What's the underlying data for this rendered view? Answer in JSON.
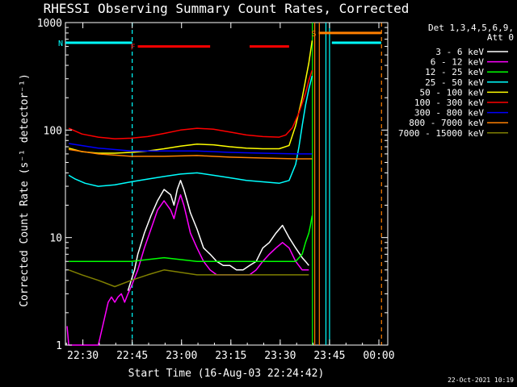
{
  "chart_data": {
    "type": "line",
    "title": "RHESSI Observing Summary Count Rates, Corrected",
    "xlabel": "Start Time (16-Aug-03 22:24:42)",
    "ylabel": "Corrected Count Rate (s⁻¹ detector⁻¹)",
    "x_unit": "minutes after 22:24:42",
    "xlim": [
      0,
      98
    ],
    "ylim": [
      1,
      1000
    ],
    "yscale": "log",
    "x_ticks": [
      {
        "label": "22:30",
        "value": 5.3
      },
      {
        "label": "22:45",
        "value": 20.3
      },
      {
        "label": "23:00",
        "value": 35.3
      },
      {
        "label": "23:15",
        "value": 50.3
      },
      {
        "label": "23:30",
        "value": 65.3
      },
      {
        "label": "23:45",
        "value": 80.3
      },
      {
        "label": "00:00",
        "value": 95.3
      }
    ],
    "y_ticks": [
      {
        "label": "1",
        "value": 1
      },
      {
        "label": "10",
        "value": 10
      },
      {
        "label": "100",
        "value": 100
      },
      {
        "label": "1000",
        "value": 1000
      }
    ],
    "legend_header": [
      "Det 1,3,4,5,6,9,",
      "Att 0"
    ],
    "legend_position": "right",
    "series": [
      {
        "name": "3 - 6 keV",
        "color": "#ffffff",
        "x": [
          19,
          20,
          21,
          22,
          24,
          26,
          28,
          30,
          32,
          33,
          34,
          35,
          36,
          37,
          38,
          40,
          42,
          44,
          46,
          48,
          50,
          52,
          54,
          56,
          58,
          60,
          62,
          64,
          66,
          68,
          70,
          72,
          73,
          74
        ],
        "y": [
          3.2,
          4,
          5,
          7,
          11,
          16,
          22,
          28,
          25,
          20,
          28,
          34,
          28,
          22,
          17,
          12,
          8,
          7,
          6,
          5.5,
          5.5,
          5,
          5,
          5.5,
          6,
          8,
          9,
          11,
          13,
          10,
          8,
          6.5,
          6,
          5.5
        ]
      },
      {
        "name": "6 - 12 keV",
        "color": "#ff00ff",
        "x": [
          0.5,
          1,
          5,
          10,
          13,
          14,
          15,
          16,
          17,
          18,
          19,
          20,
          22,
          24,
          26,
          28,
          30,
          32,
          33,
          34,
          35,
          36,
          37,
          38,
          40,
          42,
          44,
          46,
          48,
          50,
          52,
          54,
          56,
          58,
          60,
          62,
          64,
          66,
          68,
          70,
          72,
          74
        ],
        "y": [
          1.5,
          1,
          1,
          1,
          2.5,
          2.8,
          2.5,
          2.8,
          3,
          2.5,
          3,
          3.5,
          5,
          8,
          12,
          18,
          22,
          18,
          15,
          20,
          25,
          20,
          15,
          11,
          8,
          6,
          5,
          4.5,
          4.5,
          4.5,
          4.5,
          4.5,
          4.5,
          5,
          6,
          7,
          8,
          9,
          8,
          6,
          5,
          5
        ]
      },
      {
        "name": "12 - 25 keV",
        "color": "#00ff00",
        "x": [
          1,
          10,
          20,
          30,
          40,
          50,
          60,
          70,
          72,
          73,
          74,
          74.5,
          75
        ],
        "y": [
          6,
          6,
          6,
          6.5,
          6,
          6,
          6,
          6,
          7,
          9,
          11,
          13,
          16
        ]
      },
      {
        "name": "25 - 50 keV",
        "color": "#00ffff",
        "x": [
          1,
          3,
          6,
          10,
          15,
          20,
          25,
          30,
          35,
          40,
          45,
          50,
          55,
          60,
          65,
          68,
          70,
          71,
          72,
          73,
          74,
          75
        ],
        "y": [
          38,
          35,
          32,
          30,
          31,
          33,
          35,
          37,
          39,
          40,
          38,
          36,
          34,
          33,
          32,
          34,
          48,
          70,
          110,
          170,
          240,
          320
        ]
      },
      {
        "name": "50 - 100 keV",
        "color": "#ffff00",
        "x": [
          1,
          5,
          10,
          15,
          20,
          25,
          30,
          35,
          40,
          45,
          50,
          55,
          60,
          65,
          68,
          70,
          72,
          74,
          75
        ],
        "y": [
          68,
          63,
          61,
          61,
          62,
          64,
          67,
          71,
          74,
          73,
          70,
          68,
          67,
          67,
          72,
          110,
          200,
          420,
          680
        ]
      },
      {
        "name": "100 - 300 keV",
        "color": "#ff0000",
        "x": [
          1,
          5,
          10,
          15,
          20,
          25,
          30,
          35,
          40,
          45,
          50,
          55,
          60,
          65,
          67,
          69,
          71,
          73,
          74,
          75
        ],
        "y": [
          104,
          92,
          86,
          83,
          84,
          87,
          93,
          100,
          104,
          102,
          96,
          90,
          87,
          86,
          90,
          105,
          145,
          220,
          290,
          360
        ]
      },
      {
        "name": "300 - 800 keV",
        "color": "#0000ff",
        "x": [
          1,
          10,
          20,
          30,
          40,
          50,
          60,
          70,
          75
        ],
        "y": [
          75,
          68,
          64,
          64,
          64,
          62,
          61,
          60,
          60
        ]
      },
      {
        "name": "800 - 7000 keV",
        "color": "#ff8000",
        "x": [
          1,
          10,
          20,
          30,
          40,
          50,
          60,
          70,
          75
        ],
        "y": [
          66,
          60,
          57,
          57,
          58,
          56,
          55,
          54,
          54
        ]
      },
      {
        "name": "7000 - 15000 keV",
        "color": "#808000",
        "x": [
          1,
          5,
          10,
          15,
          20,
          25,
          30,
          40,
          50,
          60,
          70,
          74
        ],
        "y": [
          5,
          4.5,
          4,
          3.5,
          4,
          4.5,
          5,
          4.5,
          4.5,
          4.5,
          4.5,
          4.5
        ]
      }
    ],
    "flags": [
      {
        "label": "F",
        "color": "#ff0000",
        "value": 600,
        "spans": [
          [
            22,
            44
          ],
          [
            56,
            68
          ]
        ]
      },
      {
        "label": "N",
        "color": "#00ffff",
        "value": 650,
        "spans": [
          [
            0,
            20.3
          ],
          [
            81,
            96
          ]
        ]
      },
      {
        "label": "S",
        "color": "#ff8000",
        "value": 800,
        "spans": [
          [
            77,
            96
          ]
        ]
      }
    ],
    "vlines": [
      {
        "x": 20.3,
        "color": "#00ffff",
        "style": "dashed"
      },
      {
        "x": 75.1,
        "color": "#00ff00",
        "style": "solid"
      },
      {
        "x": 75.8,
        "color": "#ff8000",
        "style": "solid"
      },
      {
        "x": 77.2,
        "color": "#ff8000",
        "style": "solid"
      },
      {
        "x": 79.2,
        "color": "#00ffff",
        "style": "solid"
      },
      {
        "x": 80.3,
        "color": "#00ffff",
        "style": "solid"
      },
      {
        "x": 96.1,
        "color": "#ff8000",
        "style": "dashed"
      }
    ]
  },
  "footer": {
    "date": "22-Oct-2021 10:19"
  }
}
